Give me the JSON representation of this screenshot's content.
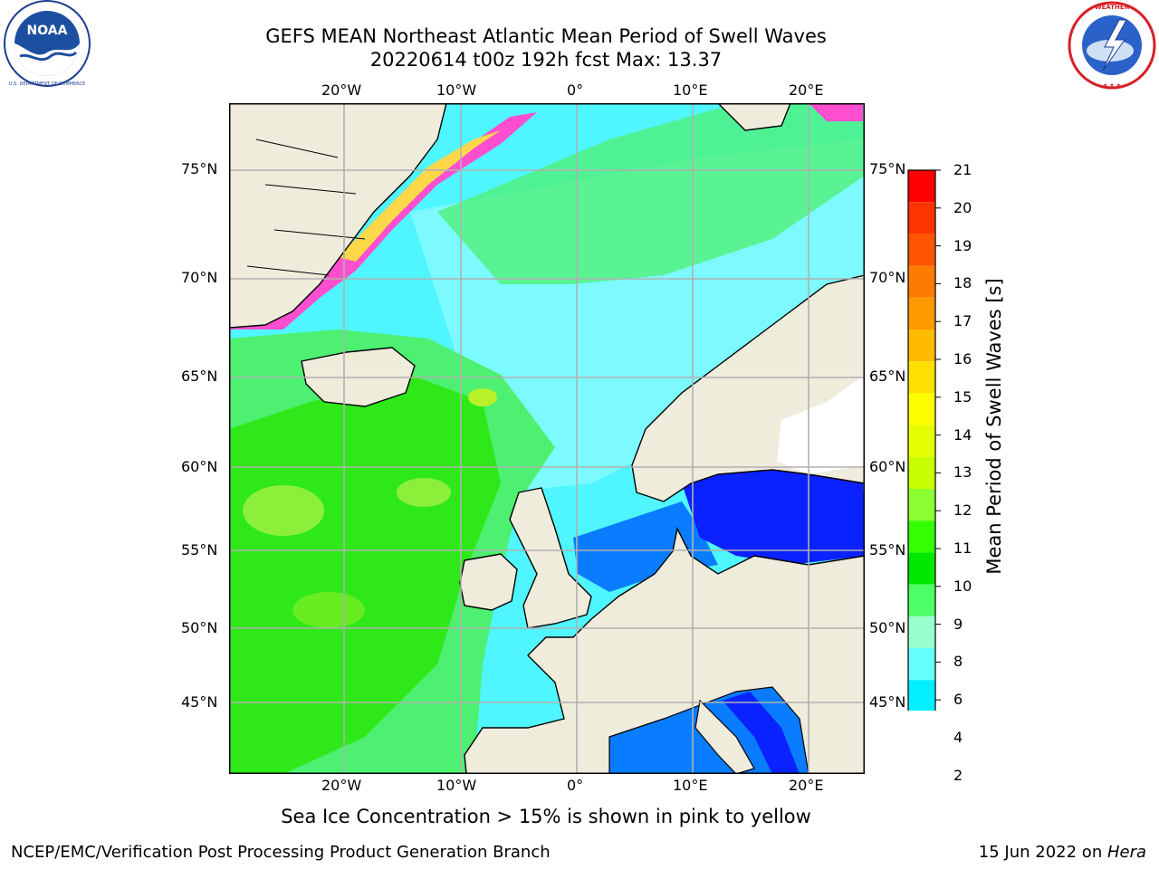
{
  "header": {
    "title_line1": "GEFS MEAN Northeast Atlantic Mean Period of Swell Waves",
    "title_line2": "20220614 t00z 192h fcst   Max: 13.37"
  },
  "logos": {
    "left": {
      "name": "NOAA",
      "ring_text": "NATIONAL OCEANIC AND ATMOSPHERIC ADMINISTRATION · U.S. DEPARTMENT OF COMMERCE"
    },
    "right": {
      "name": "NATIONAL WEATHER SERVICE"
    }
  },
  "map": {
    "lon_ticks_top": [
      "20°W",
      "10°W",
      "0°",
      "10°E",
      "20°E"
    ],
    "lon_ticks_bottom": [
      "20°W",
      "10°W",
      "0°",
      "10°E",
      "20°E"
    ],
    "lat_ticks_left": [
      "75°N",
      "70°N",
      "65°N",
      "60°N",
      "55°N",
      "50°N",
      "45°N"
    ],
    "lat_ticks_right": [
      "75°N",
      "70°N",
      "65°N",
      "60°N",
      "55°N",
      "50°N",
      "45°N"
    ],
    "land_color": "#efecdc",
    "coast_color": "#000000",
    "grid_color": "#b0b0b0"
  },
  "colorbar": {
    "label": "Mean Period of Swell Waves [s]",
    "ticks": [
      "21",
      "20",
      "19",
      "18",
      "17",
      "16",
      "15",
      "14",
      "13",
      "12",
      "11",
      "10",
      "9",
      "8",
      "6",
      "4",
      "2"
    ],
    "colors_top_to_bottom": [
      "#ff0000",
      "#ff3300",
      "#ff5500",
      "#ff7a00",
      "#ff9900",
      "#ffbb00",
      "#ffe000",
      "#ffff00",
      "#e6ff00",
      "#c8ff00",
      "#8cff33",
      "#33ff00",
      "#00e800",
      "#4dff66",
      "#99ffcc",
      "#66ffff",
      "#00f0ff",
      "#00bbff",
      "#0066ff"
    ],
    "extend_color": "#0022ff"
  },
  "caption": "Sea Ice Concentration > 15% is shown in pink to yellow",
  "footer": {
    "left": "NCEP/EMC/Verification Post Processing Product Generation Branch",
    "right_date": "15 Jun 2022 on ",
    "right_host": "Hera"
  }
}
